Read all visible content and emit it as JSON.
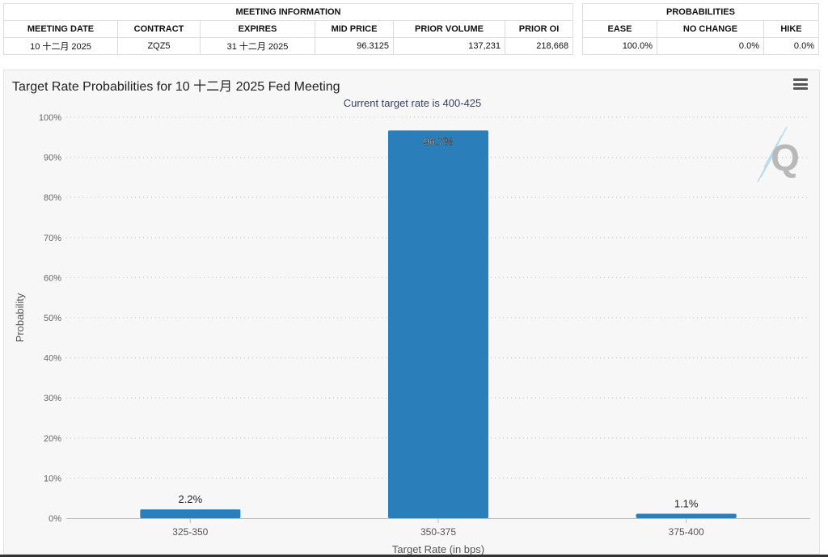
{
  "meeting_info": {
    "section_title": "MEETING INFORMATION",
    "columns": [
      "MEETING DATE",
      "CONTRACT",
      "EXPIRES",
      "MID PRICE",
      "PRIOR VOLUME",
      "PRIOR OI"
    ],
    "row": [
      "10 十二月 2025",
      "ZQZ5",
      "31 十二月 2025",
      "96.3125",
      "137,231",
      "218,668"
    ]
  },
  "probabilities": {
    "section_title": "PROBABILITIES",
    "columns": [
      "EASE",
      "NO CHANGE",
      "HIKE"
    ],
    "row": [
      "100.0%",
      "0.0%",
      "0.0%"
    ]
  },
  "chart_data": {
    "type": "bar",
    "title": "Target Rate Probabilities for 10 十二月 2025 Fed Meeting",
    "subtitle": "Current target rate is 400-425",
    "xlabel": "Target Rate (in bps)",
    "ylabel": "Probability",
    "categories": [
      "325-350",
      "350-375",
      "375-400"
    ],
    "values": [
      2.2,
      96.7,
      1.1
    ],
    "data_labels": [
      "2.2%",
      "96.7%",
      "1.1%"
    ],
    "ylim": [
      0,
      100
    ],
    "yticks": [
      0,
      10,
      20,
      30,
      40,
      50,
      60,
      70,
      80,
      90,
      100
    ],
    "ytick_labels": [
      "0%",
      "10%",
      "20%",
      "30%",
      "40%",
      "50%",
      "60%",
      "70%",
      "80%",
      "90%",
      "100%"
    ],
    "grid": true,
    "bar_color": "#2a7fba"
  },
  "icons": {
    "menu": "hamburger-menu-icon",
    "watermark": "q-logo"
  },
  "watermark_text": "Q"
}
